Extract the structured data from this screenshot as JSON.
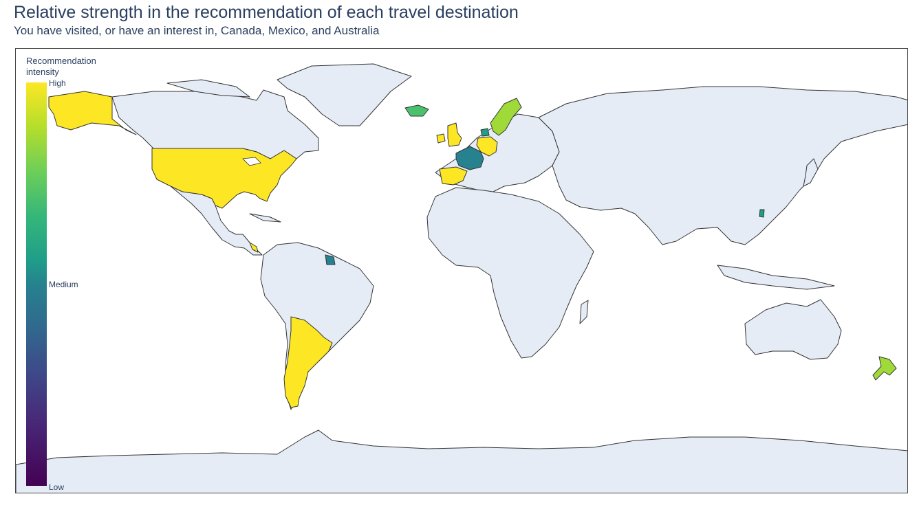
{
  "title": "Relative strength in the recommendation of each travel destination",
  "subtitle": "You have visited, or have an interest in, Canada, Mexico, and Australia",
  "colorbar": {
    "title": "Recommendation intensity",
    "ticks": {
      "high": "High",
      "medium": "Medium",
      "low": "Low"
    },
    "colorscale": "Viridis",
    "colors": [
      "#440154",
      "#3e4989",
      "#26828e",
      "#35b779",
      "#b5de2b",
      "#fde725"
    ]
  },
  "map": {
    "projection": "equirectangular",
    "land_color": "#e5ecf6",
    "border_color": "#333333",
    "highlighted_countries": [
      {
        "region": "USA",
        "level": "high",
        "color": "#fde725"
      },
      {
        "region": "Argentina",
        "level": "high",
        "color": "#fde725"
      },
      {
        "region": "United Kingdom",
        "level": "high",
        "color": "#fde725"
      },
      {
        "region": "Ireland",
        "level": "high",
        "color": "#fde725"
      },
      {
        "region": "Spain",
        "level": "high",
        "color": "#fde725"
      },
      {
        "region": "Germany",
        "level": "high",
        "color": "#fde725"
      },
      {
        "region": "Costa Rica",
        "level": "high",
        "color": "#fde725"
      },
      {
        "region": "Sweden",
        "level": "medium-high",
        "color": "#a0da39"
      },
      {
        "region": "New Zealand",
        "level": "medium-high",
        "color": "#a0da39"
      },
      {
        "region": "Iceland",
        "level": "medium-high",
        "color": "#4ac16d"
      },
      {
        "region": "Denmark",
        "level": "medium",
        "color": "#1f9e89"
      },
      {
        "region": "Taiwan",
        "level": "medium",
        "color": "#1f9e89"
      },
      {
        "region": "France",
        "level": "medium",
        "color": "#26828e"
      },
      {
        "region": "French Guiana",
        "level": "medium",
        "color": "#26828e"
      }
    ]
  }
}
